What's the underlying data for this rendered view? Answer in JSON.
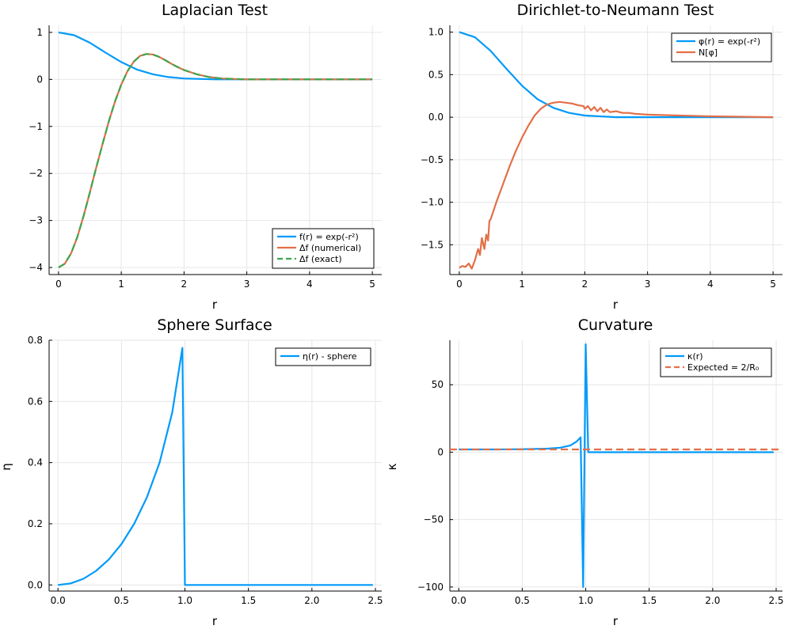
{
  "colors": {
    "blue": "#009AFA",
    "orange": "#E36F47",
    "green": "#3EA44E"
  },
  "chart_data": [
    {
      "type": "line",
      "title": "Laplacian Test",
      "xlabel": "r",
      "ylabel": "",
      "xlim": [
        -0.15,
        5.15
      ],
      "ylim": [
        -4.15,
        1.15
      ],
      "xticks": [
        0,
        1,
        2,
        3,
        4,
        5
      ],
      "yticks": [
        -4,
        -3,
        -2,
        -1,
        0,
        1
      ],
      "grid": true,
      "legend_position": "bottom-right",
      "series": [
        {
          "name": "f(r) = exp(-r²)",
          "color": "#009AFA",
          "style": "solid",
          "x": [
            0,
            0.25,
            0.5,
            0.75,
            1.0,
            1.25,
            1.5,
            1.75,
            2.0,
            2.5,
            3.0,
            4.0,
            5.0
          ],
          "y": [
            1.0,
            0.94,
            0.78,
            0.57,
            0.37,
            0.21,
            0.11,
            0.05,
            0.02,
            0.0,
            0.0,
            0.0,
            0.0
          ]
        },
        {
          "name": "Δf (numerical)",
          "color": "#E36F47",
          "style": "solid",
          "x": [
            0,
            0.1,
            0.2,
            0.3,
            0.4,
            0.5,
            0.6,
            0.7,
            0.8,
            0.9,
            1.0,
            1.1,
            1.2,
            1.3,
            1.4,
            1.5,
            1.6,
            1.7,
            1.8,
            1.9,
            2.0,
            2.2,
            2.4,
            2.6,
            2.8,
            3.0,
            3.5,
            4.0,
            5.0
          ],
          "y": [
            -4.0,
            -3.92,
            -3.7,
            -3.35,
            -2.9,
            -2.4,
            -1.88,
            -1.38,
            -0.9,
            -0.47,
            -0.11,
            0.18,
            0.38,
            0.5,
            0.54,
            0.53,
            0.48,
            0.41,
            0.33,
            0.26,
            0.2,
            0.11,
            0.05,
            0.02,
            0.01,
            0.0,
            0.0,
            0.0,
            0.0
          ]
        },
        {
          "name": "Δf (exact)",
          "color": "#3EA44E",
          "style": "dashed",
          "x": [
            0,
            0.1,
            0.2,
            0.3,
            0.4,
            0.5,
            0.6,
            0.7,
            0.8,
            0.9,
            1.0,
            1.1,
            1.2,
            1.3,
            1.4,
            1.5,
            1.6,
            1.7,
            1.8,
            1.9,
            2.0,
            2.2,
            2.4,
            2.6,
            2.8,
            3.0,
            3.5,
            4.0,
            5.0
          ],
          "y": [
            -4.0,
            -3.92,
            -3.7,
            -3.35,
            -2.9,
            -2.4,
            -1.88,
            -1.38,
            -0.9,
            -0.47,
            -0.11,
            0.18,
            0.38,
            0.5,
            0.54,
            0.53,
            0.48,
            0.41,
            0.33,
            0.26,
            0.2,
            0.11,
            0.05,
            0.02,
            0.01,
            0.0,
            0.0,
            0.0,
            0.0
          ]
        }
      ]
    },
    {
      "type": "line",
      "title": "Dirichlet-to-Neumann Test",
      "xlabel": "r",
      "ylabel": "",
      "xlim": [
        -0.15,
        5.15
      ],
      "ylim": [
        -1.85,
        1.08
      ],
      "xticks": [
        0,
        1,
        2,
        3,
        4,
        5
      ],
      "yticks": [
        -1.5,
        -1.0,
        -0.5,
        0.0,
        0.5,
        1.0
      ],
      "grid": true,
      "legend_position": "top-right",
      "series": [
        {
          "name": "φ(r) = exp(-r²)",
          "color": "#009AFA",
          "style": "solid",
          "x": [
            0,
            0.25,
            0.5,
            0.75,
            1.0,
            1.25,
            1.5,
            1.75,
            2.0,
            2.5,
            3.0,
            4.0,
            5.0
          ],
          "y": [
            1.0,
            0.94,
            0.78,
            0.57,
            0.37,
            0.21,
            0.11,
            0.05,
            0.02,
            0.0,
            0.0,
            0.0,
            0.0
          ]
        },
        {
          "name": "N[φ]",
          "color": "#E36F47",
          "style": "solid",
          "x": [
            0,
            0.05,
            0.1,
            0.15,
            0.2,
            0.25,
            0.3,
            0.33,
            0.36,
            0.4,
            0.43,
            0.46,
            0.48,
            0.5,
            0.6,
            0.7,
            0.8,
            0.9,
            1.0,
            1.1,
            1.2,
            1.3,
            1.4,
            1.5,
            1.6,
            1.7,
            1.8,
            1.9,
            1.98,
            2.0,
            2.05,
            2.1,
            2.15,
            2.2,
            2.25,
            2.3,
            2.35,
            2.4,
            2.5,
            2.6,
            2.7,
            2.8,
            3.0,
            3.5,
            4.0,
            5.0
          ],
          "y": [
            -1.77,
            -1.75,
            -1.76,
            -1.72,
            -1.78,
            -1.68,
            -1.55,
            -1.62,
            -1.42,
            -1.55,
            -1.38,
            -1.45,
            -1.22,
            -1.2,
            -0.98,
            -0.78,
            -0.58,
            -0.4,
            -0.24,
            -0.1,
            0.02,
            0.1,
            0.15,
            0.17,
            0.18,
            0.17,
            0.16,
            0.14,
            0.13,
            0.1,
            0.13,
            0.08,
            0.12,
            0.07,
            0.11,
            0.06,
            0.09,
            0.06,
            0.07,
            0.05,
            0.05,
            0.04,
            0.03,
            0.02,
            0.01,
            0.0
          ]
        }
      ]
    },
    {
      "type": "line",
      "title": "Sphere Surface",
      "xlabel": "r",
      "ylabel": "η",
      "xlim": [
        -0.07,
        2.55
      ],
      "ylim": [
        -0.02,
        0.8
      ],
      "xticks": [
        0,
        0.5,
        1.0,
        1.5,
        2.0,
        2.5
      ],
      "xticklabels": [
        "0.0",
        "0.5",
        "1.0",
        "1.5",
        "2.0",
        "2.5"
      ],
      "yticks": [
        0,
        0.2,
        0.4,
        0.6,
        0.8
      ],
      "yticklabels": [
        "0.0",
        "0.2",
        "0.4",
        "0.6",
        "0.8"
      ],
      "grid": true,
      "legend_position": "top-right",
      "series": [
        {
          "name": "η(r) - sphere",
          "color": "#009AFA",
          "style": "solid",
          "x": [
            0,
            0.1,
            0.2,
            0.3,
            0.4,
            0.5,
            0.6,
            0.7,
            0.8,
            0.9,
            0.98,
            1.0,
            1.5,
            2.0,
            2.48
          ],
          "y": [
            0.0,
            0.005,
            0.02,
            0.046,
            0.083,
            0.134,
            0.2,
            0.286,
            0.4,
            0.564,
            0.775,
            0.0,
            0.0,
            0.0,
            0.0
          ]
        }
      ]
    },
    {
      "type": "line",
      "title": "Curvature",
      "xlabel": "r",
      "ylabel": "κ",
      "xlim": [
        -0.07,
        2.55
      ],
      "ylim": [
        -103,
        83
      ],
      "xticks": [
        0,
        0.5,
        1.0,
        1.5,
        2.0,
        2.5
      ],
      "xticklabels": [
        "0.0",
        "0.5",
        "1.0",
        "1.5",
        "2.0",
        "2.5"
      ],
      "yticks": [
        -100,
        -50,
        0,
        50
      ],
      "grid": true,
      "legend_position": "top-right",
      "series": [
        {
          "name": "κ(r)",
          "color": "#009AFA",
          "style": "solid",
          "x": [
            0,
            0.3,
            0.5,
            0.7,
            0.8,
            0.88,
            0.93,
            0.96,
            0.98,
            1.0,
            1.02,
            1.5,
            2.0,
            2.48
          ],
          "y": [
            2,
            2,
            2.2,
            2.6,
            3.3,
            5,
            8,
            11,
            -100,
            80,
            0,
            0,
            0,
            0
          ]
        },
        {
          "name": "Expected = 2/R₀",
          "color": "#E36F47",
          "style": "dashed",
          "x": [
            -0.07,
            2.55
          ],
          "y": [
            2,
            2
          ]
        }
      ]
    }
  ]
}
